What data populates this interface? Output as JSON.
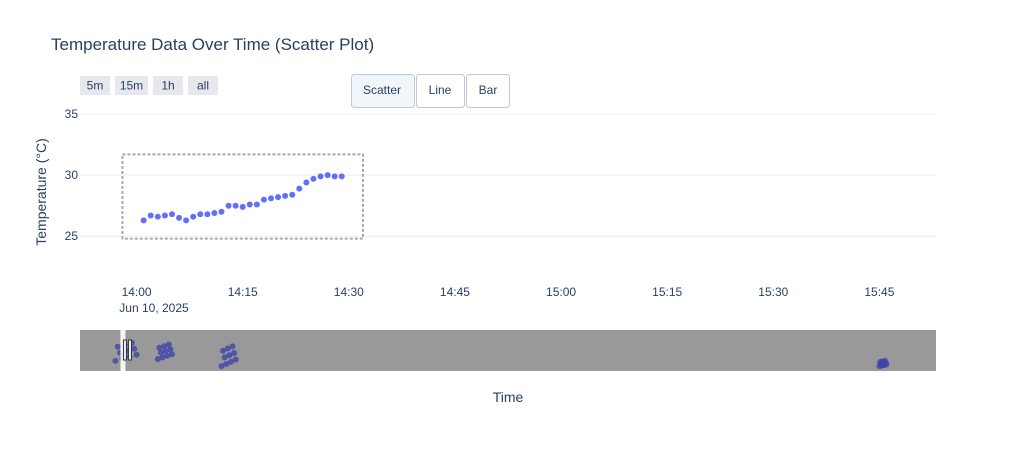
{
  "chart_data": {
    "type": "scatter",
    "title": "Temperature Data Over Time (Scatter Plot)",
    "xlabel": "Time",
    "ylabel": "Temperature (°C)",
    "date_label": "Jun 10, 2025",
    "xlim": [
      "13:52",
      "15:53"
    ],
    "ylim": [
      24.2,
      35.5
    ],
    "yticks": [
      25,
      30,
      35
    ],
    "xticks": [
      "14:00",
      "14:15",
      "14:30",
      "14:45",
      "15:00",
      "15:15",
      "15:30",
      "15:45"
    ],
    "grid": true,
    "marker_color": "#636efa",
    "series": [
      {
        "x": [
          "14:01",
          "14:02",
          "14:03",
          "14:04",
          "14:05",
          "14:06",
          "14:07",
          "14:08",
          "14:09",
          "14:10",
          "14:11",
          "14:12",
          "14:13",
          "14:14",
          "14:15",
          "14:16",
          "14:17",
          "14:18",
          "14:19",
          "14:20",
          "14:21",
          "14:22",
          "14:23",
          "14:24",
          "14:25",
          "14:26",
          "14:27",
          "14:28",
          "14:29"
        ],
        "y": [
          26.3,
          26.7,
          26.6,
          26.7,
          26.8,
          26.5,
          26.3,
          26.6,
          26.8,
          26.8,
          26.9,
          27.0,
          27.5,
          27.5,
          27.4,
          27.6,
          27.6,
          28.0,
          28.1,
          28.2,
          28.3,
          28.4,
          28.9,
          29.4,
          29.7,
          29.9,
          30.0,
          29.9,
          29.9
        ]
      }
    ],
    "selection_box": {
      "x": [
        "13:58",
        "14:32"
      ],
      "y": [
        24.8,
        31.7
      ]
    },
    "rangeslider_clusters": [
      {
        "x": [
          "13:57",
          "14:00"
        ],
        "y": [
          27.0,
          32.0
        ]
      },
      {
        "x": [
          "14:03",
          "14:05"
        ],
        "y": [
          27.5,
          31.5
        ]
      },
      {
        "x": [
          "14:12",
          "14:14"
        ],
        "y": [
          25.5,
          31.0
        ]
      },
      {
        "x": [
          "15:45",
          "15:46"
        ],
        "y": [
          25.5,
          27.0
        ]
      }
    ]
  },
  "range_buttons": [
    "5m",
    "15m",
    "1h",
    "all"
  ],
  "chart_type_buttons": [
    "Scatter",
    "Line",
    "Bar"
  ],
  "active_chart_type": "Scatter",
  "colors": {
    "title": "#2a3f5f",
    "grid": "#e9edf2",
    "rangeslider_bg": "#999999",
    "range_button_bg": "#e6e8ee",
    "active_button_bg": "#f1f6fb"
  }
}
